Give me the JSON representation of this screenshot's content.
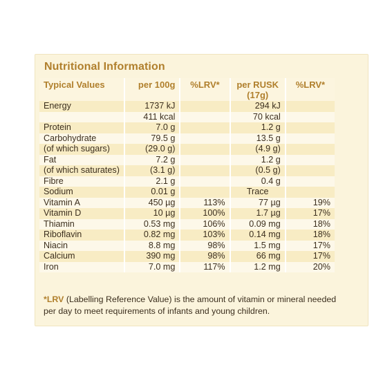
{
  "title": "Nutritional Information",
  "headers": {
    "name": "Typical Values",
    "per100": "per 100g",
    "lrv1": "%LRV*",
    "rusk": "per RUSK (17g)",
    "lrv2": "%LRV*"
  },
  "rows": [
    {
      "name": "Energy",
      "per100": "1737 kJ",
      "lrv1": "",
      "rusk": "294 kJ",
      "lrv2": ""
    },
    {
      "name": "",
      "per100": "411 kcal",
      "lrv1": "",
      "rusk": "70 kcal",
      "lrv2": ""
    },
    {
      "name": "Protein",
      "per100": "7.0 g",
      "lrv1": "",
      "rusk": "1.2 g",
      "lrv2": ""
    },
    {
      "name": "Carbohydrate",
      "per100": "79.5 g",
      "lrv1": "",
      "rusk": "13.5 g",
      "lrv2": ""
    },
    {
      "name": "(of which sugars)",
      "per100": "(29.0 g)",
      "lrv1": "",
      "rusk": "(4.9 g)",
      "lrv2": ""
    },
    {
      "name": "Fat",
      "per100": "7.2 g",
      "lrv1": "",
      "rusk": "1.2 g",
      "lrv2": ""
    },
    {
      "name": "(of which saturates)",
      "per100": "(3.1 g)",
      "lrv1": "",
      "rusk": "(0.5 g)",
      "lrv2": ""
    },
    {
      "name": "Fibre",
      "per100": "2.1 g",
      "lrv1": "",
      "rusk": "0.4 g",
      "lrv2": ""
    },
    {
      "name": "Sodium",
      "per100": "0.01 g",
      "lrv1": "",
      "rusk": "Trace",
      "lrv2": ""
    },
    {
      "name": "Vitamin A",
      "per100": "450 µg",
      "lrv1": "113%",
      "rusk": "77 µg",
      "lrv2": "19%"
    },
    {
      "name": "Vitamin D",
      "per100": "10 µg",
      "lrv1": "100%",
      "rusk": "1.7 µg",
      "lrv2": "17%"
    },
    {
      "name": "Thiamin",
      "per100": "0.53 mg",
      "lrv1": "106%",
      "rusk": "0.09 mg",
      "lrv2": "18%"
    },
    {
      "name": "Riboflavin",
      "per100": "0.82 mg",
      "lrv1": "103%",
      "rusk": "0.14 mg",
      "lrv2": "18%"
    },
    {
      "name": "Niacin",
      "per100": "8.8 mg",
      "lrv1": "98%",
      "rusk": "1.5 mg",
      "lrv2": "17%"
    },
    {
      "name": "Calcium",
      "per100": "390 mg",
      "lrv1": "98%",
      "rusk": "66 mg",
      "lrv2": "17%"
    },
    {
      "name": "Iron",
      "per100": "7.0 mg",
      "lrv1": "117%",
      "rusk": "1.2 mg",
      "lrv2": "20%"
    }
  ],
  "footnote": {
    "term": "*LRV",
    "text": " (Labelling Reference Value) is the amount of vitamin or mineral needed per day to meet requirements of infants and young children."
  }
}
